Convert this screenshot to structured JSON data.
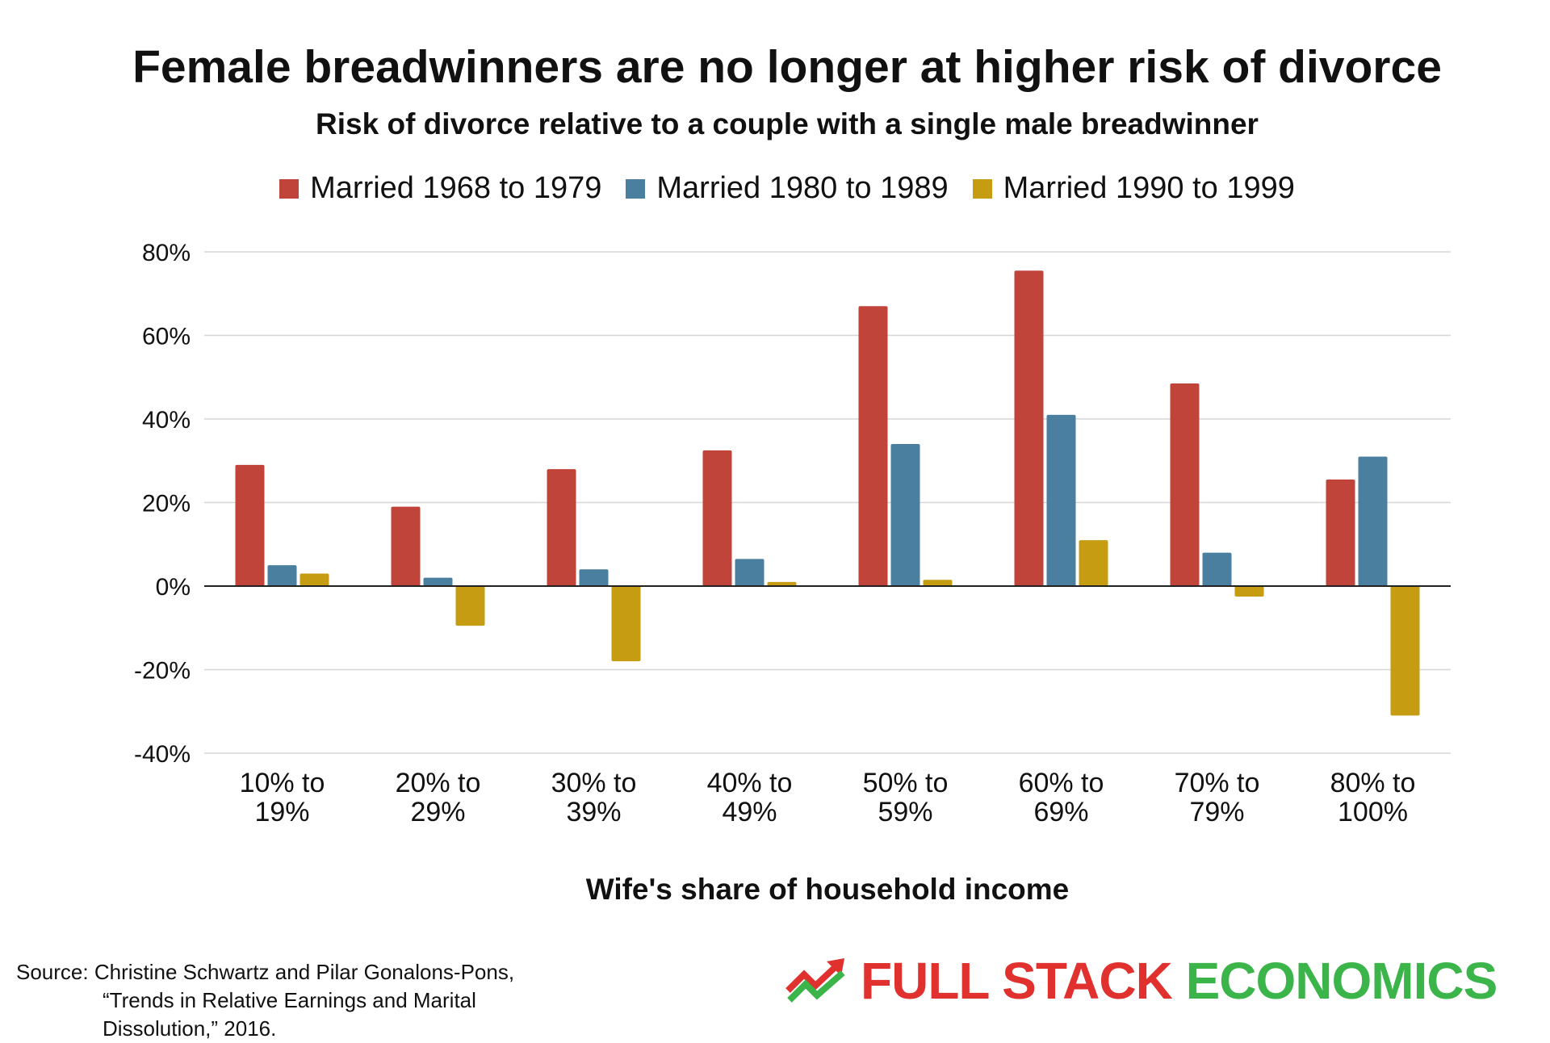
{
  "title": "Female breadwinners are no longer at higher risk of divorce",
  "subtitle": "Risk of divorce relative to a couple with a single male breadwinner",
  "source": {
    "line1": "Source: Christine Schwartz and Pilar Gonalons-Pons,",
    "line2": "“Trends in Relative Earnings and Marital",
    "line3": "Dissolution,” 2016."
  },
  "brand": {
    "word1": "FULL STACK",
    "word2": "ECONOMICS",
    "color1": "#e0312f",
    "color2": "#3bb54a",
    "icon": "trend-up-icon"
  },
  "chart_data": {
    "type": "bar",
    "title": "Female breadwinners are no longer at higher risk of divorce",
    "subtitle": "Risk of divorce relative to a couple with a single male breadwinner",
    "xlabel": "Wife's share of household income",
    "ylabel": "",
    "ylim": [
      -40,
      80
    ],
    "yticks": [
      80,
      60,
      40,
      20,
      0,
      -20,
      -40
    ],
    "ytick_labels": [
      "80%",
      "60%",
      "40%",
      "20%",
      "0%",
      "-20%",
      "-40%"
    ],
    "grid": true,
    "legend_position": "top-center",
    "categories": [
      [
        "10% to",
        "19%"
      ],
      [
        "20% to",
        "29%"
      ],
      [
        "30% to",
        "39%"
      ],
      [
        "40% to",
        "49%"
      ],
      [
        "50% to",
        "59%"
      ],
      [
        "60% to",
        "69%"
      ],
      [
        "70% to",
        "79%"
      ],
      [
        "80% to",
        "100%"
      ]
    ],
    "series": [
      {
        "name": "Married 1968 to 1979",
        "color": "#c0443a",
        "values": [
          29,
          19,
          28,
          32.5,
          67,
          75.5,
          48.5,
          25.5
        ]
      },
      {
        "name": "Married 1980 to 1989",
        "color": "#4a7fa0",
        "values": [
          5,
          2,
          4,
          6.5,
          34,
          41,
          8,
          31
        ]
      },
      {
        "name": "Married 1990 to 1999",
        "color": "#c69c13",
        "values": [
          3,
          -9.5,
          -18,
          1,
          1.5,
          11,
          -2.5,
          -31
        ]
      }
    ]
  }
}
